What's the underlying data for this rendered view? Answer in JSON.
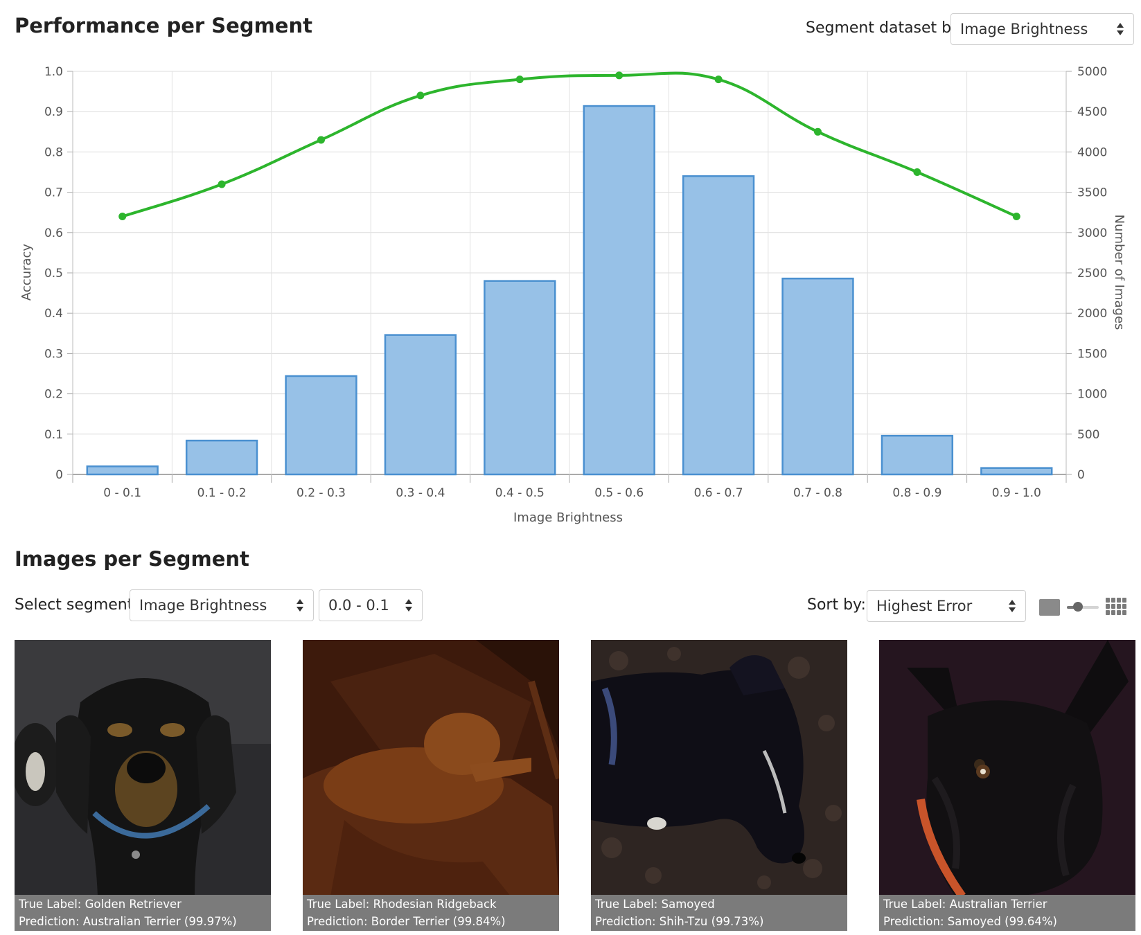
{
  "performance": {
    "title": "Performance per Segment",
    "segment_label": "Segment dataset by:",
    "segment_value": "Image Brightness"
  },
  "chart_data": {
    "type": "bar",
    "xlabel": "Image Brightness",
    "ylabel_left": "Accuracy",
    "ylabel_right": "Number of Images",
    "categories": [
      "0 - 0.1",
      "0.1 - 0.2",
      "0.2 - 0.3",
      "0.3 - 0.4",
      "0.4 - 0.5",
      "0.5 - 0.6",
      "0.6 - 0.7",
      "0.7 - 0.8",
      "0.8 - 0.9",
      "0.9 - 1.0"
    ],
    "left_ticks": [
      "0",
      "0.1",
      "0.2",
      "0.3",
      "0.4",
      "0.5",
      "0.6",
      "0.7",
      "0.8",
      "0.9",
      "1.0"
    ],
    "right_ticks": [
      "0",
      "500",
      "1000",
      "1500",
      "2000",
      "2500",
      "3000",
      "3500",
      "4000",
      "4500",
      "5000"
    ],
    "left_ylim": [
      0,
      1.0
    ],
    "right_ylim": [
      0,
      5000
    ],
    "grid": true,
    "series": [
      {
        "name": "",
        "type": "bar",
        "axis": "right",
        "values": [
          100,
          420,
          1220,
          1730,
          2400,
          4570,
          3700,
          2430,
          480,
          80
        ]
      },
      {
        "name": "",
        "type": "line",
        "axis": "left",
        "values": [
          0.64,
          0.72,
          0.83,
          0.94,
          0.98,
          0.99,
          0.98,
          0.85,
          0.75,
          0.64
        ]
      }
    ],
    "colors": {
      "bar_fill": "#97c1e7",
      "bar_stroke": "#4a90d0",
      "line": "#2db52d"
    }
  },
  "images": {
    "title": "Images per Segment",
    "select_label": "Select segment:",
    "segment_value": "Image Brightness",
    "range_value": "0.0 - 0.1",
    "sort_label": "Sort by:",
    "sort_value": "Highest Error",
    "cards": [
      {
        "true_label": "True Label: Golden Retriever",
        "prediction": "Prediction: Australian Terrier (99.97%)"
      },
      {
        "true_label": "True Label: Rhodesian Ridgeback",
        "prediction": "Prediction: Border Terrier (99.84%)"
      },
      {
        "true_label": "True Label: Samoyed",
        "prediction": "Prediction: Shih-Tzu (99.73%)"
      },
      {
        "true_label": "True Label: Australian Terrier",
        "prediction": "Prediction: Samoyed (99.64%)"
      }
    ]
  }
}
